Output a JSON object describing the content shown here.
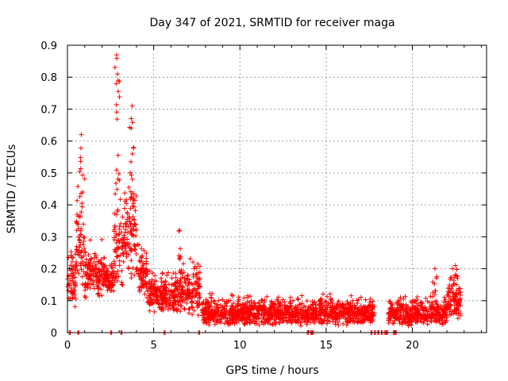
{
  "chart_data": {
    "type": "scatter",
    "title": "Day 347 of 2021, SRMTID for receiver maga",
    "xlabel": "GPS time / hours",
    "ylabel": "SRMTID / TECUs",
    "xlim": [
      0,
      24.3
    ],
    "ylim": [
      0,
      0.9
    ],
    "xticks": [
      0,
      5,
      10,
      15,
      20
    ],
    "yticks": [
      0,
      0.1,
      0.2,
      0.3,
      0.4,
      0.5,
      0.6,
      0.7,
      0.8,
      0.9
    ],
    "grid": true,
    "marker": "plus",
    "series_color": "#ff0000",
    "peaks": [
      {
        "x": 0.8,
        "y": 0.62
      },
      {
        "x": 2.85,
        "y": 0.87
      },
      {
        "x": 2.9,
        "y": 0.81
      },
      {
        "x": 3.75,
        "y": 0.71
      },
      {
        "x": 3.7,
        "y": 0.67
      },
      {
        "x": 6.5,
        "y": 0.32
      },
      {
        "x": 21.3,
        "y": 0.2
      },
      {
        "x": 22.5,
        "y": 0.21
      }
    ],
    "envelope": [
      {
        "x0": 0.0,
        "x1": 0.5,
        "lo": 0.08,
        "hi": 0.28
      },
      {
        "x0": 0.5,
        "x1": 1.0,
        "lo": 0.15,
        "hi": 0.5
      },
      {
        "x0": 1.0,
        "x1": 2.2,
        "lo": 0.1,
        "hi": 0.3
      },
      {
        "x0": 2.2,
        "x1": 2.7,
        "lo": 0.12,
        "hi": 0.24
      },
      {
        "x0": 2.7,
        "x1": 3.3,
        "lo": 0.12,
        "hi": 0.48
      },
      {
        "x0": 3.3,
        "x1": 4.0,
        "lo": 0.16,
        "hi": 0.5
      },
      {
        "x0": 4.0,
        "x1": 4.6,
        "lo": 0.1,
        "hi": 0.3
      },
      {
        "x0": 4.6,
        "x1": 6.2,
        "lo": 0.06,
        "hi": 0.2
      },
      {
        "x0": 6.2,
        "x1": 7.7,
        "lo": 0.05,
        "hi": 0.24
      },
      {
        "x0": 7.8,
        "x1": 17.8,
        "lo": 0.02,
        "hi": 0.12
      },
      {
        "x0": 18.6,
        "x1": 22.0,
        "lo": 0.02,
        "hi": 0.12
      },
      {
        "x0": 22.0,
        "x1": 22.8,
        "lo": 0.04,
        "hi": 0.2
      }
    ],
    "zero_points": [
      0.1,
      0.6,
      2.5,
      3.1,
      5.6,
      7.6,
      13.9,
      14.1,
      14.2,
      17.6,
      17.8,
      18.0,
      18.2,
      18.4,
      18.5,
      18.9,
      19.0
    ]
  }
}
